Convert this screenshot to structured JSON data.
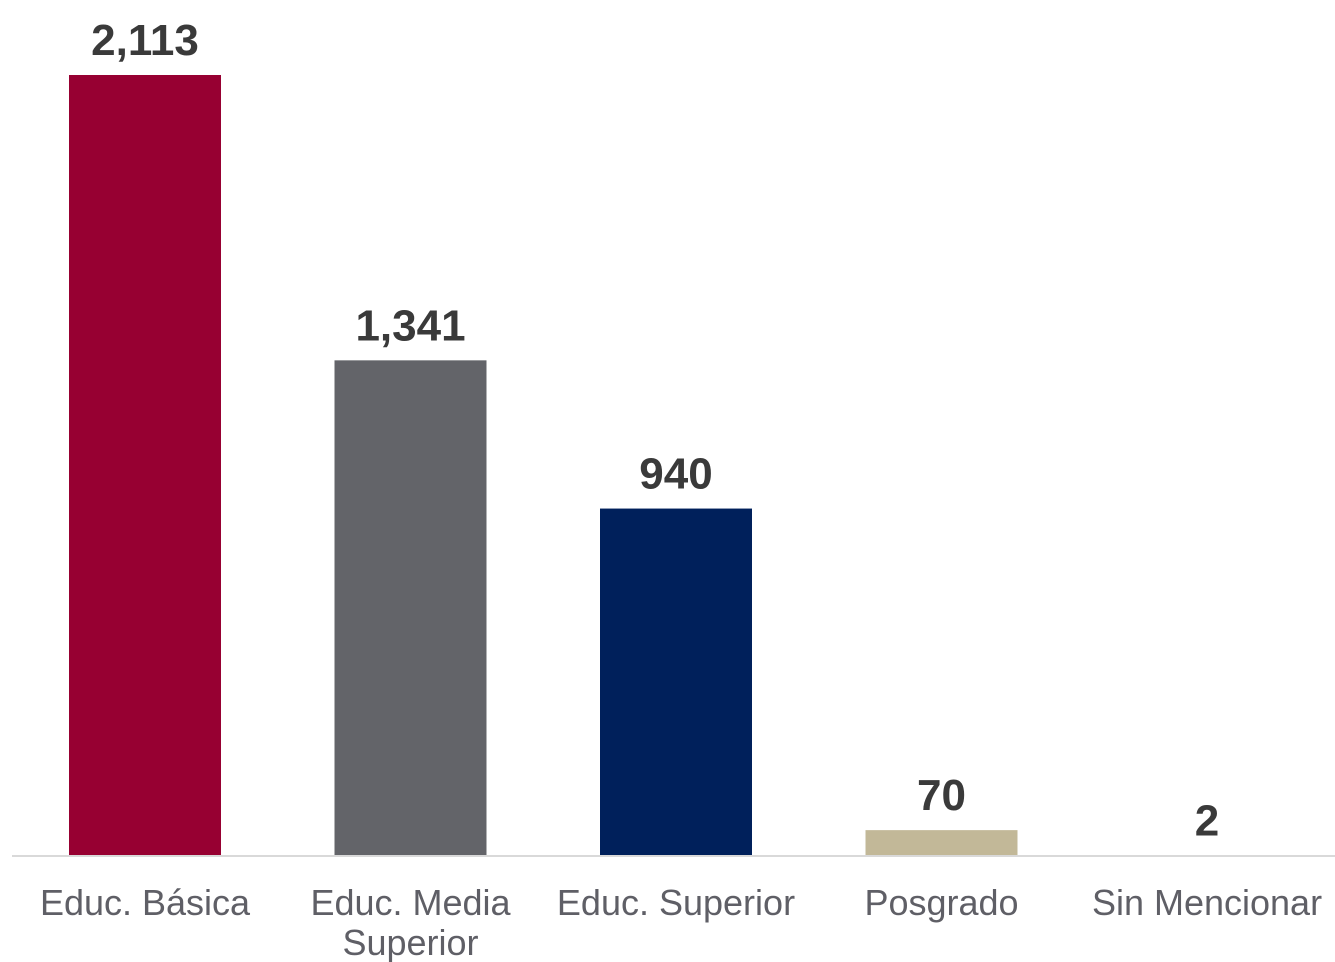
{
  "chart_data": {
    "type": "bar",
    "categories": [
      [
        "Educ. Básica"
      ],
      [
        "Educ. Media",
        "Superior"
      ],
      [
        "Educ. Superior"
      ],
      [
        "Posgrado"
      ],
      [
        "Sin Mencionar"
      ]
    ],
    "values": [
      2113,
      1341,
      940,
      70,
      2
    ],
    "value_labels": [
      "2,113",
      "1,341",
      "940",
      "70",
      "2"
    ],
    "colors": [
      "#970032",
      "#636469",
      "#00205b",
      "#c2b898",
      "#c2b898"
    ],
    "title": "",
    "xlabel": "",
    "ylabel": "",
    "ylim": [
      0,
      2113
    ],
    "grid": false,
    "legend": "none",
    "baseline_color": "#d9d9d9"
  }
}
